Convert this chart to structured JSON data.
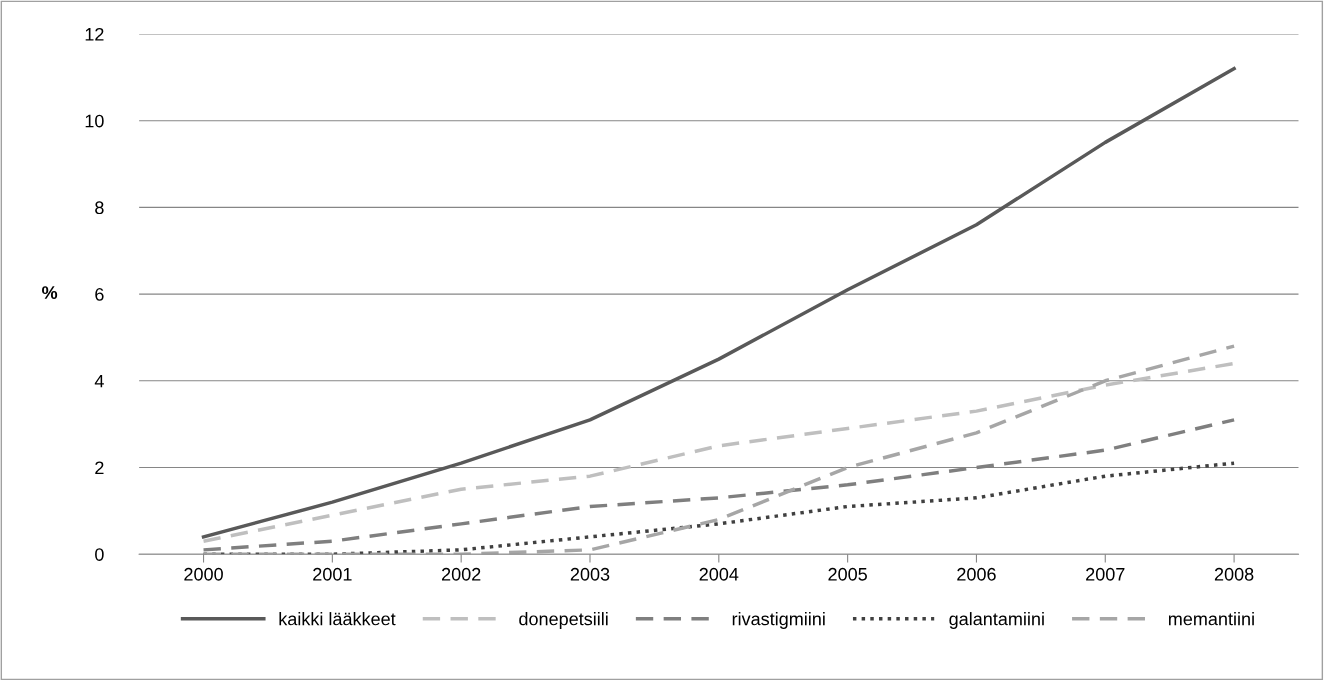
{
  "chart_data": {
    "type": "line",
    "ylabel": "%",
    "categories": [
      "2000",
      "2001",
      "2002",
      "2003",
      "2004",
      "2005",
      "2006",
      "2007",
      "2008"
    ],
    "series": [
      {
        "name": "kaikki lääkkeet",
        "color": "#595959",
        "line_style": "solid",
        "values": [
          0.4,
          1.2,
          2.1,
          3.1,
          4.5,
          6.1,
          7.6,
          9.5,
          11.2
        ]
      },
      {
        "name": "donepetsiili",
        "color": "#bfbfbf",
        "line_style": "dashed",
        "values": [
          0.3,
          0.9,
          1.5,
          1.8,
          2.5,
          2.9,
          3.3,
          3.9,
          4.4
        ]
      },
      {
        "name": "rivastigmiini",
        "color": "#7f7f7f",
        "line_style": "dashed",
        "values": [
          0.1,
          0.3,
          0.7,
          1.1,
          1.3,
          1.6,
          2.0,
          2.4,
          3.1
        ]
      },
      {
        "name": "galantamiini",
        "color": "#404040",
        "line_style": "dotted",
        "values": [
          0.0,
          0.0,
          0.1,
          0.4,
          0.7,
          1.1,
          1.3,
          1.8,
          2.1
        ]
      },
      {
        "name": "memantiini",
        "color": "#a6a6a6",
        "line_style": "dashed",
        "values": [
          0.0,
          0.0,
          0.0,
          0.1,
          0.8,
          2.0,
          2.8,
          4.0,
          4.8
        ]
      }
    ],
    "ylim": [
      0,
      12
    ],
    "yticks": [
      0,
      2,
      4,
      6,
      8,
      10,
      12
    ],
    "grid": "y",
    "legend": "bottom",
    "marker": "none"
  }
}
